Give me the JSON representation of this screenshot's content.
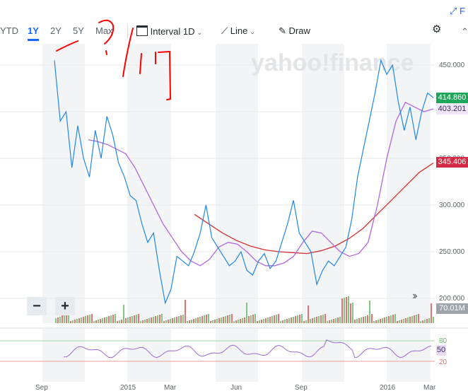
{
  "toolbar": {
    "ranges": [
      "YTD",
      "1Y",
      "2Y",
      "5Y",
      "Max"
    ],
    "active_range": "1Y",
    "interval_label": "Interval",
    "interval_value": "1D",
    "chart_type": "Line",
    "draw_label": "Draw"
  },
  "top_link": "F",
  "watermark": "yahoo!finance",
  "price_labels": {
    "current": "414.860",
    "ma_short": "403.201",
    "ma_long": "345.406"
  },
  "volume_label": "70.01M",
  "rsi_label": "50",
  "rsi_levels": [
    "80",
    "20"
  ],
  "zoom": {
    "minus": "−",
    "plus": "+"
  },
  "colors": {
    "price_line": "#1e88e5",
    "ma_short": "#b266e0",
    "ma_long": "#d32f2f",
    "current_tag": "#1ea65a",
    "ma_short_tag": "#9c6ad8",
    "ma_long_tag": "#d12a43",
    "annotation": "#ff0000"
  },
  "chart_data": {
    "type": "line",
    "y_ticks": [
      "450.000",
      "400.000",
      "350.000",
      "300.000",
      "250.000",
      "200.000"
    ],
    "ylim": [
      185,
      470
    ],
    "x_ticks": [
      "Sep",
      "2015",
      "Mar",
      "Jun",
      "Sep",
      "2016",
      "Mar"
    ],
    "series": [
      {
        "values": [
          455,
          390,
          400,
          340,
          385,
          350,
          330,
          380,
          350,
          395,
          375,
          345,
          330,
          310,
          305,
          280,
          260,
          270,
          230,
          195,
          210,
          245,
          240,
          235,
          250,
          270,
          300,
          265,
          255,
          245,
          235,
          240,
          250,
          230,
          225,
          240,
          248,
          232,
          240,
          260,
          280,
          305,
          270,
          260,
          250,
          215,
          230,
          240,
          235,
          245,
          255,
          285,
          330,
          360,
          390,
          420,
          455,
          440,
          450,
          410,
          380,
          405,
          370,
          400,
          420,
          415
        ]
      },
      {
        "values": [
          370,
          368,
          365,
          360,
          355,
          340,
          320,
          300,
          280,
          265,
          250,
          240,
          235,
          242,
          255,
          260,
          258,
          250,
          240,
          235,
          235,
          238,
          245,
          260,
          272,
          270,
          260,
          250,
          245,
          248,
          260,
          300,
          350,
          390,
          410,
          405,
          400,
          403
        ]
      },
      {
        "values": [
          290,
          280,
          270,
          262,
          256,
          252,
          250,
          249,
          248,
          251,
          256,
          264,
          275,
          290,
          305,
          320,
          335,
          345
        ]
      }
    ]
  }
}
